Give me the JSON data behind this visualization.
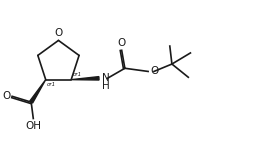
{
  "bg_color": "#ffffff",
  "line_color": "#1a1a1a",
  "line_width": 1.2,
  "font_size": 6.5,
  "fig_width": 2.68,
  "fig_height": 1.48,
  "xlim": [
    0,
    10
  ],
  "ylim": [
    0,
    5.5
  ]
}
